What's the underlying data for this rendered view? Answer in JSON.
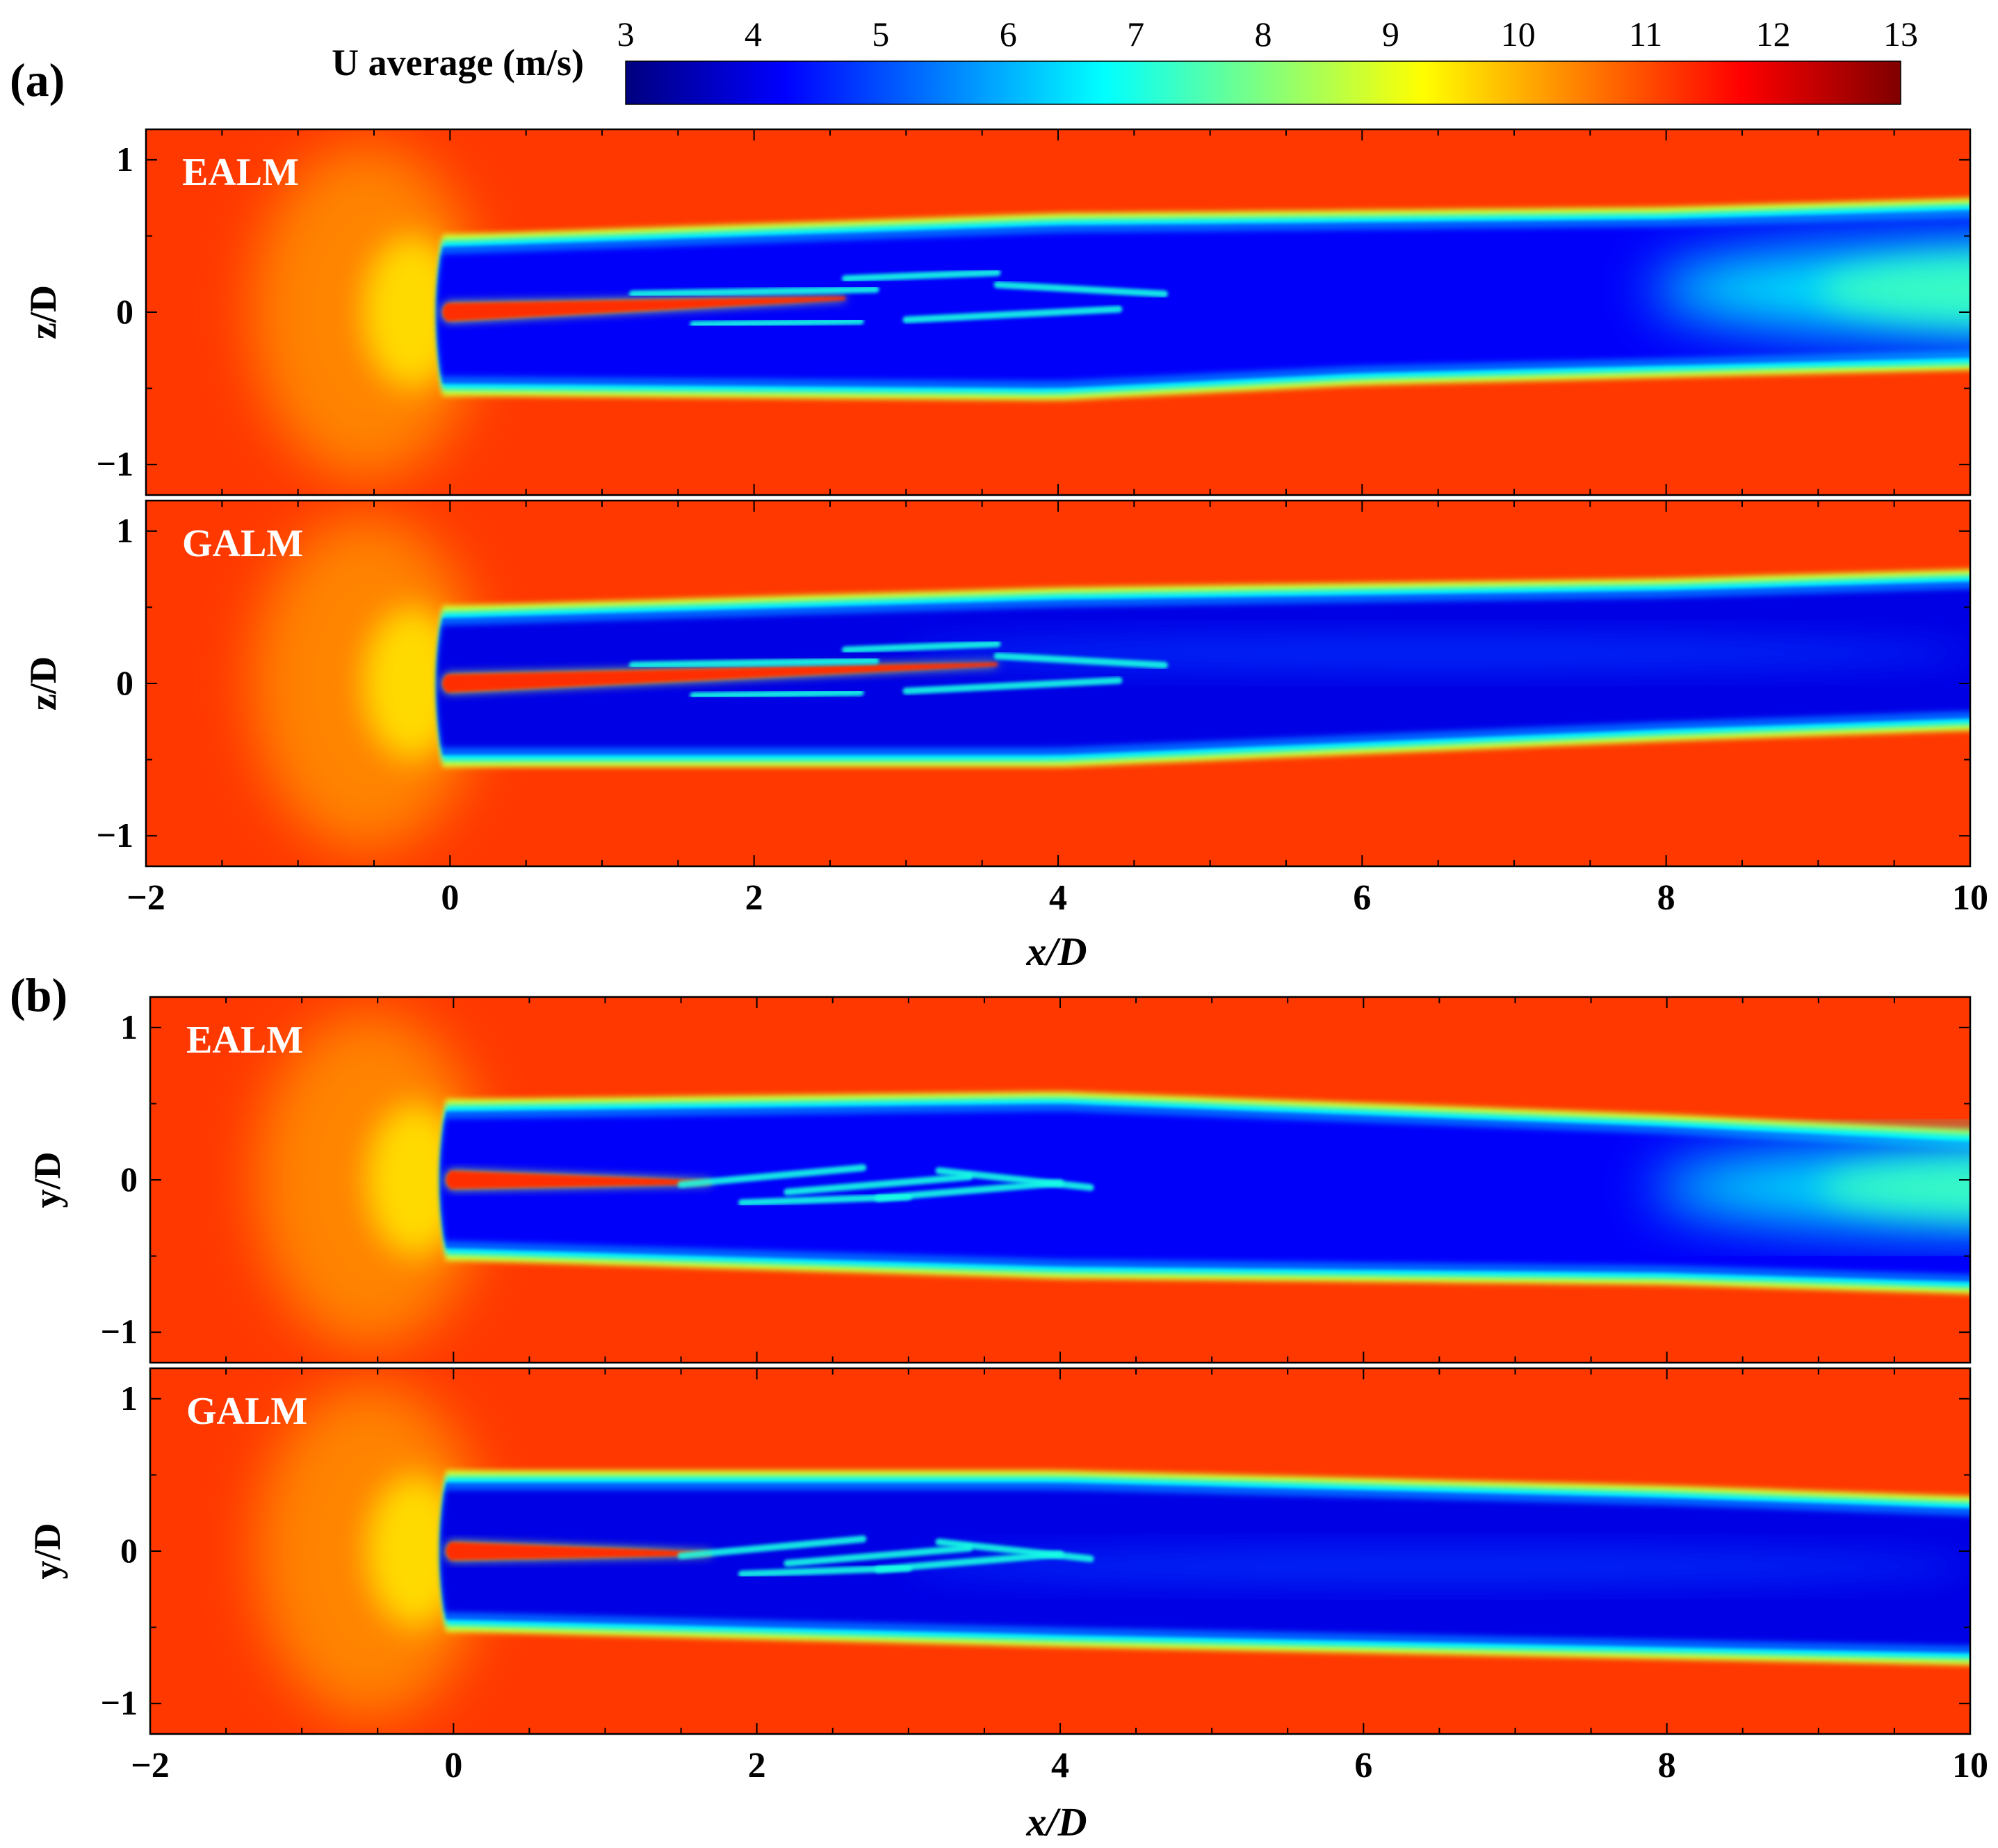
{
  "figure": {
    "part_a_label": "(a)",
    "part_b_label": "(b)"
  },
  "colorbar": {
    "title": "U average (m/s)",
    "min": 3,
    "max": 13,
    "ticks": [
      "3",
      "4",
      "5",
      "6",
      "7",
      "8",
      "9",
      "10",
      "11",
      "12",
      "13"
    ],
    "colormap": "jet",
    "colors": [
      "#00007f",
      "#0000ff",
      "#007fff",
      "#00ffff",
      "#7fff7f",
      "#ffff00",
      "#ff7f00",
      "#ff0000",
      "#7f0000"
    ]
  },
  "chart_data": [
    {
      "type": "heatmap",
      "panel": "(a) top",
      "label": "EALM",
      "xlabel": "",
      "ylabel": "z/D",
      "xlim": [
        -2,
        10
      ],
      "ylim": [
        -1.2,
        1.2
      ],
      "y_ticks": [
        "1",
        "0",
        "−1"
      ],
      "freestream_velocity": 11.2,
      "wake_core_velocity": 4.2,
      "wake_upper_edge": [
        [
          0,
          0.48
        ],
        [
          4,
          0.62
        ],
        [
          8,
          0.66
        ],
        [
          10,
          0.72
        ]
      ],
      "wake_lower_edge": [
        [
          0,
          -0.52
        ],
        [
          4,
          -0.55
        ],
        [
          6,
          -0.45
        ],
        [
          8,
          -0.4
        ],
        [
          10,
          -0.35
        ]
      ]
    },
    {
      "type": "heatmap",
      "panel": "(a) bottom",
      "label": "GALM",
      "xlabel": "x/D",
      "ylabel": "z/D",
      "xlim": [
        -2,
        10
      ],
      "ylim": [
        -1.2,
        1.2
      ],
      "x_ticks": [
        "−2",
        "0",
        "2",
        "4",
        "6",
        "8",
        "10"
      ],
      "y_ticks": [
        "1",
        "0",
        "−1"
      ],
      "freestream_velocity": 11.2,
      "wake_core_velocity": 4.0,
      "wake_upper_edge": [
        [
          0,
          0.48
        ],
        [
          4,
          0.6
        ],
        [
          8,
          0.66
        ],
        [
          10,
          0.72
        ]
      ],
      "wake_lower_edge": [
        [
          0,
          -0.52
        ],
        [
          4,
          -0.52
        ],
        [
          8,
          -0.35
        ],
        [
          10,
          -0.28
        ]
      ]
    },
    {
      "type": "heatmap",
      "panel": "(b) top",
      "label": "EALM",
      "xlabel": "",
      "ylabel": "y/D",
      "xlim": [
        -2,
        10
      ],
      "ylim": [
        -1.2,
        1.2
      ],
      "y_ticks": [
        "1",
        "0",
        "−1"
      ],
      "freestream_velocity": 11.2,
      "wake_core_velocity": 4.2,
      "wake_upper_edge": [
        [
          0,
          0.5
        ],
        [
          4,
          0.55
        ],
        [
          8,
          0.4
        ],
        [
          10,
          0.3
        ]
      ],
      "wake_lower_edge": [
        [
          0,
          -0.5
        ],
        [
          4,
          -0.62
        ],
        [
          8,
          -0.66
        ],
        [
          10,
          -0.72
        ]
      ]
    },
    {
      "type": "heatmap",
      "panel": "(b) bottom",
      "label": "GALM",
      "xlabel": "x/D",
      "ylabel": "y/D",
      "xlim": [
        -2,
        10
      ],
      "ylim": [
        -1.2,
        1.2
      ],
      "x_ticks": [
        "−2",
        "0",
        "2",
        "4",
        "6",
        "8",
        "10"
      ],
      "y_ticks": [
        "1",
        "0",
        "−1"
      ],
      "freestream_velocity": 11.2,
      "wake_core_velocity": 4.0,
      "wake_upper_edge": [
        [
          0,
          0.5
        ],
        [
          4,
          0.5
        ],
        [
          8,
          0.4
        ],
        [
          10,
          0.33
        ]
      ],
      "wake_lower_edge": [
        [
          0,
          -0.5
        ],
        [
          4,
          -0.6
        ],
        [
          8,
          -0.68
        ],
        [
          10,
          -0.72
        ]
      ]
    }
  ]
}
